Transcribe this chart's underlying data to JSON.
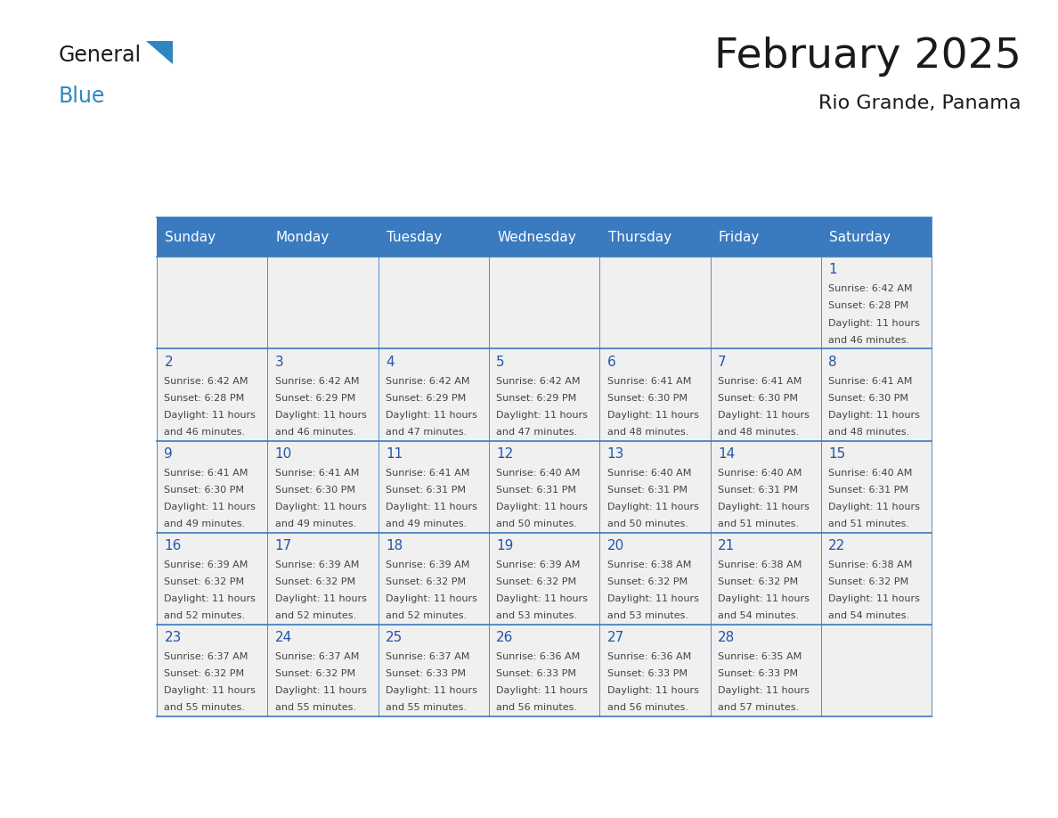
{
  "title": "February 2025",
  "subtitle": "Rio Grande, Panama",
  "header_bg": "#3a7abf",
  "header_text_color": "#ffffff",
  "cell_bg_light": "#f0f0f0",
  "day_names": [
    "Sunday",
    "Monday",
    "Tuesday",
    "Wednesday",
    "Thursday",
    "Friday",
    "Saturday"
  ],
  "text_color": "#444444",
  "number_color": "#2255aa",
  "line_color": "#3a7abf",
  "logo_black": "#1a1a1a",
  "logo_blue": "#2e86c1",
  "title_color": "#1a1a1a",
  "days": [
    {
      "day": 1,
      "col": 6,
      "row": 0,
      "sunrise": "6:42 AM",
      "sunset": "6:28 PM",
      "daylight_h": "11 hours",
      "daylight_m": "46 minutes."
    },
    {
      "day": 2,
      "col": 0,
      "row": 1,
      "sunrise": "6:42 AM",
      "sunset": "6:28 PM",
      "daylight_h": "11 hours",
      "daylight_m": "46 minutes."
    },
    {
      "day": 3,
      "col": 1,
      "row": 1,
      "sunrise": "6:42 AM",
      "sunset": "6:29 PM",
      "daylight_h": "11 hours",
      "daylight_m": "46 minutes."
    },
    {
      "day": 4,
      "col": 2,
      "row": 1,
      "sunrise": "6:42 AM",
      "sunset": "6:29 PM",
      "daylight_h": "11 hours",
      "daylight_m": "47 minutes."
    },
    {
      "day": 5,
      "col": 3,
      "row": 1,
      "sunrise": "6:42 AM",
      "sunset": "6:29 PM",
      "daylight_h": "11 hours",
      "daylight_m": "47 minutes."
    },
    {
      "day": 6,
      "col": 4,
      "row": 1,
      "sunrise": "6:41 AM",
      "sunset": "6:30 PM",
      "daylight_h": "11 hours",
      "daylight_m": "48 minutes."
    },
    {
      "day": 7,
      "col": 5,
      "row": 1,
      "sunrise": "6:41 AM",
      "sunset": "6:30 PM",
      "daylight_h": "11 hours",
      "daylight_m": "48 minutes."
    },
    {
      "day": 8,
      "col": 6,
      "row": 1,
      "sunrise": "6:41 AM",
      "sunset": "6:30 PM",
      "daylight_h": "11 hours",
      "daylight_m": "48 minutes."
    },
    {
      "day": 9,
      "col": 0,
      "row": 2,
      "sunrise": "6:41 AM",
      "sunset": "6:30 PM",
      "daylight_h": "11 hours",
      "daylight_m": "49 minutes."
    },
    {
      "day": 10,
      "col": 1,
      "row": 2,
      "sunrise": "6:41 AM",
      "sunset": "6:30 PM",
      "daylight_h": "11 hours",
      "daylight_m": "49 minutes."
    },
    {
      "day": 11,
      "col": 2,
      "row": 2,
      "sunrise": "6:41 AM",
      "sunset": "6:31 PM",
      "daylight_h": "11 hours",
      "daylight_m": "49 minutes."
    },
    {
      "day": 12,
      "col": 3,
      "row": 2,
      "sunrise": "6:40 AM",
      "sunset": "6:31 PM",
      "daylight_h": "11 hours",
      "daylight_m": "50 minutes."
    },
    {
      "day": 13,
      "col": 4,
      "row": 2,
      "sunrise": "6:40 AM",
      "sunset": "6:31 PM",
      "daylight_h": "11 hours",
      "daylight_m": "50 minutes."
    },
    {
      "day": 14,
      "col": 5,
      "row": 2,
      "sunrise": "6:40 AM",
      "sunset": "6:31 PM",
      "daylight_h": "11 hours",
      "daylight_m": "51 minutes."
    },
    {
      "day": 15,
      "col": 6,
      "row": 2,
      "sunrise": "6:40 AM",
      "sunset": "6:31 PM",
      "daylight_h": "11 hours",
      "daylight_m": "51 minutes."
    },
    {
      "day": 16,
      "col": 0,
      "row": 3,
      "sunrise": "6:39 AM",
      "sunset": "6:32 PM",
      "daylight_h": "11 hours",
      "daylight_m": "52 minutes."
    },
    {
      "day": 17,
      "col": 1,
      "row": 3,
      "sunrise": "6:39 AM",
      "sunset": "6:32 PM",
      "daylight_h": "11 hours",
      "daylight_m": "52 minutes."
    },
    {
      "day": 18,
      "col": 2,
      "row": 3,
      "sunrise": "6:39 AM",
      "sunset": "6:32 PM",
      "daylight_h": "11 hours",
      "daylight_m": "52 minutes."
    },
    {
      "day": 19,
      "col": 3,
      "row": 3,
      "sunrise": "6:39 AM",
      "sunset": "6:32 PM",
      "daylight_h": "11 hours",
      "daylight_m": "53 minutes."
    },
    {
      "day": 20,
      "col": 4,
      "row": 3,
      "sunrise": "6:38 AM",
      "sunset": "6:32 PM",
      "daylight_h": "11 hours",
      "daylight_m": "53 minutes."
    },
    {
      "day": 21,
      "col": 5,
      "row": 3,
      "sunrise": "6:38 AM",
      "sunset": "6:32 PM",
      "daylight_h": "11 hours",
      "daylight_m": "54 minutes."
    },
    {
      "day": 22,
      "col": 6,
      "row": 3,
      "sunrise": "6:38 AM",
      "sunset": "6:32 PM",
      "daylight_h": "11 hours",
      "daylight_m": "54 minutes."
    },
    {
      "day": 23,
      "col": 0,
      "row": 4,
      "sunrise": "6:37 AM",
      "sunset": "6:32 PM",
      "daylight_h": "11 hours",
      "daylight_m": "55 minutes."
    },
    {
      "day": 24,
      "col": 1,
      "row": 4,
      "sunrise": "6:37 AM",
      "sunset": "6:32 PM",
      "daylight_h": "11 hours",
      "daylight_m": "55 minutes."
    },
    {
      "day": 25,
      "col": 2,
      "row": 4,
      "sunrise": "6:37 AM",
      "sunset": "6:33 PM",
      "daylight_h": "11 hours",
      "daylight_m": "55 minutes."
    },
    {
      "day": 26,
      "col": 3,
      "row": 4,
      "sunrise": "6:36 AM",
      "sunset": "6:33 PM",
      "daylight_h": "11 hours",
      "daylight_m": "56 minutes."
    },
    {
      "day": 27,
      "col": 4,
      "row": 4,
      "sunrise": "6:36 AM",
      "sunset": "6:33 PM",
      "daylight_h": "11 hours",
      "daylight_m": "56 minutes."
    },
    {
      "day": 28,
      "col": 5,
      "row": 4,
      "sunrise": "6:35 AM",
      "sunset": "6:33 PM",
      "daylight_h": "11 hours",
      "daylight_m": "57 minutes."
    }
  ]
}
